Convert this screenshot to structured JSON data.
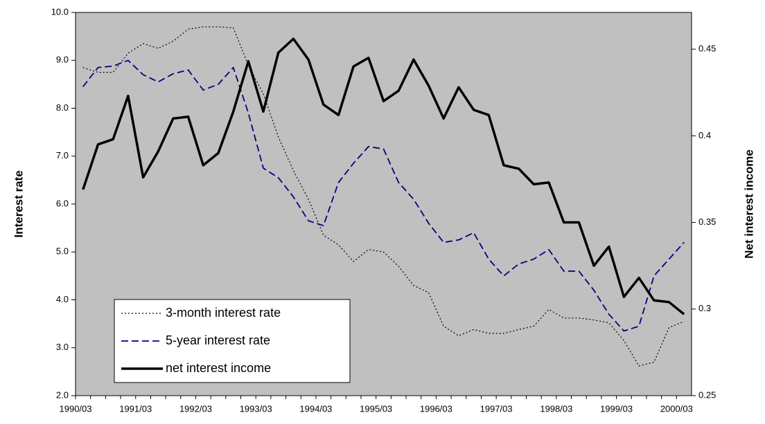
{
  "chart_data": {
    "type": "line",
    "y_label": "Interest rate",
    "y2_label": "Net interest income",
    "categories": [
      "1990/03",
      null,
      null,
      null,
      "1991/03",
      null,
      null,
      null,
      "1992/03",
      null,
      null,
      null,
      "1993/03",
      null,
      null,
      null,
      "1994/03",
      null,
      null,
      null,
      "1995/03",
      null,
      null,
      null,
      "1996/03",
      null,
      null,
      null,
      "1997/03",
      null,
      null,
      null,
      "1998/03",
      null,
      null,
      null,
      "1999/03",
      null,
      null,
      null,
      "2000/03"
    ],
    "ylim": [
      2,
      10
    ],
    "yticks": [
      {
        "value": 2,
        "label": "2.0"
      },
      {
        "value": 3,
        "label": "3.0"
      },
      {
        "value": 4,
        "label": "4.0"
      },
      {
        "value": 5,
        "label": "5.0"
      },
      {
        "value": 6,
        "label": "6.0"
      },
      {
        "value": 7,
        "label": "7.0"
      },
      {
        "value": 8,
        "label": "8.0"
      },
      {
        "value": 9,
        "label": "9.0"
      },
      {
        "value": 10,
        "label": "10.0"
      }
    ],
    "y2lim": [
      0.25,
      0.4712
    ],
    "y2ticks": [
      0.25,
      0.3,
      0.35,
      0.4,
      0.45
    ],
    "plot_background": "#c0c0c0",
    "legend": "lower left",
    "series": [
      {
        "name": "3-month interest rate",
        "color": "#000000",
        "dash": "dotted",
        "width": 1.2,
        "values": [
          8.85,
          8.75,
          8.75,
          9.15,
          9.35,
          9.25,
          9.4,
          9.65,
          9.7,
          9.7,
          9.68,
          8.9,
          8.3,
          7.4,
          6.7,
          6.1,
          5.35,
          5.15,
          4.8,
          5.05,
          5.0,
          4.7,
          4.3,
          4.15,
          3.45,
          3.25,
          3.38,
          3.3,
          3.3,
          3.38,
          3.45,
          3.8,
          3.62,
          3.62,
          3.58,
          3.52,
          3.15,
          2.62,
          2.7,
          3.42,
          3.55
        ]
      },
      {
        "name": "5-year interest rate",
        "color": "#000080",
        "dash": "dashed",
        "width": 1.8,
        "values": [
          8.45,
          8.85,
          8.88,
          9.0,
          8.7,
          8.55,
          8.72,
          8.8,
          8.38,
          8.5,
          8.85,
          7.9,
          6.75,
          6.55,
          6.15,
          5.65,
          5.55,
          6.45,
          6.85,
          7.2,
          7.15,
          6.45,
          6.1,
          5.6,
          5.2,
          5.25,
          5.4,
          4.85,
          4.5,
          4.75,
          4.85,
          5.05,
          4.6,
          4.6,
          4.2,
          3.7,
          3.35,
          3.45,
          4.5,
          4.85,
          5.2
        ]
      },
      {
        "name": "net interest income",
        "color": "#000000",
        "dash": "solid",
        "width": 3.5,
        "axis": "y2",
        "values": [
          0.369,
          0.395,
          0.398,
          0.423,
          0.376,
          0.391,
          0.41,
          0.411,
          0.383,
          0.39,
          0.414,
          0.443,
          0.414,
          0.448,
          0.456,
          0.444,
          0.418,
          0.412,
          0.44,
          0.445,
          0.42,
          0.426,
          0.444,
          0.429,
          0.41,
          0.428,
          0.415,
          0.412,
          0.383,
          0.381,
          0.372,
          0.373,
          0.35,
          0.35,
          0.325,
          0.336,
          0.307,
          0.318,
          0.305,
          0.304,
          0.297
        ]
      }
    ]
  }
}
